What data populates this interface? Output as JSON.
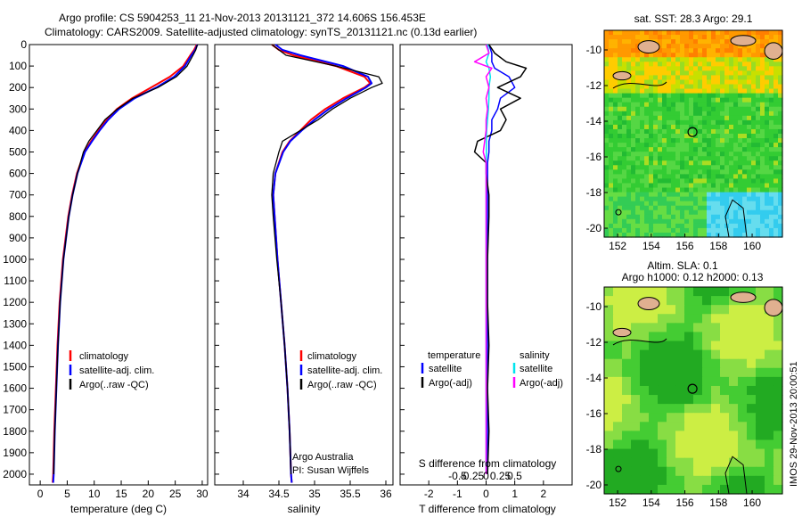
{
  "header": {
    "line1": "Argo profile: CS 5904253_11 21-Nov-2013 20131121_372 14.606S 156.453E",
    "line2": "Climatology: CARS2009. Satellite-adjusted climatology: synTS_20131121.nc (0.13d earlier)"
  },
  "colors": {
    "climatology": "#ff0000",
    "satellite_adj": "#0000ff",
    "argo": "#000000",
    "satellite_salinity": "#00e5ee",
    "argo_salinity_adj": "#ff00ff"
  },
  "depth_axis": {
    "ticks": [
      "0",
      "100",
      "200",
      "300",
      "400",
      "500",
      "600",
      "700",
      "800",
      "900",
      "1000",
      "1100",
      "1200",
      "1300",
      "1400",
      "1500",
      "1600",
      "1700",
      "1800",
      "1900",
      "2000"
    ]
  },
  "legends": {
    "climatology": "climatology",
    "satellite_adj": "satellite-adj. clim.",
    "argo_raw": "Argo(..raw -QC)",
    "temperature": "temperature",
    "salinity": "salinity",
    "satellite": "satellite",
    "argo_adj": "Argo(-adj)"
  },
  "notes": {
    "argo_australia": "Argo Australia",
    "pi": "PI: Susan Wijffels"
  },
  "panel3": {
    "s_diff_label": "S difference from climatology",
    "s_ticks": [
      "-0.5",
      "-0.25",
      "0",
      "0.25",
      "0.5"
    ]
  },
  "maps": {
    "sst_title": "sat. SST: 28.3 Argo: 29.1",
    "sla_title1": "Altim. SLA: 0.1",
    "sla_title2": "Argo h1000: 0.12 h2000: 0.13",
    "lat_ticks": [
      "-10",
      "-12",
      "-14",
      "-16",
      "-18",
      "-20"
    ],
    "lon_ticks": [
      "152",
      "154",
      "156",
      "158",
      "160"
    ],
    "float_lon": 156.453,
    "float_lat": -14.606,
    "credit": "IMOS 29-Nov-2013 20:00:51"
  },
  "chart_data": [
    {
      "type": "line",
      "title": "",
      "xlabel": "temperature (deg C)",
      "ylabel": "",
      "xlim": [
        -2,
        31
      ],
      "ylim": [
        2050,
        0
      ],
      "xticks": [
        "0",
        "5",
        "10",
        "15",
        "20",
        "25",
        "30"
      ],
      "y_depth": [
        0,
        25,
        50,
        100,
        150,
        200,
        250,
        300,
        350,
        400,
        450,
        500,
        600,
        700,
        800,
        900,
        1000,
        1200,
        1400,
        1600,
        1800,
        2000,
        2040
      ],
      "series": [
        {
          "name": "climatology",
          "values": [
            29.0,
            28.5,
            27.8,
            26.5,
            24.0,
            20.5,
            17.0,
            14.2,
            12.3,
            10.8,
            9.4,
            8.2,
            6.8,
            5.9,
            5.2,
            4.7,
            4.2,
            3.6,
            3.2,
            2.9,
            2.6,
            2.4,
            2.3
          ]
        },
        {
          "name": "satellite-adj. clim.",
          "values": [
            29.1,
            28.7,
            28.0,
            26.8,
            24.8,
            21.5,
            17.5,
            14.6,
            12.6,
            11.0,
            9.6,
            8.3,
            6.9,
            6.0,
            5.3,
            4.8,
            4.3,
            3.7,
            3.3,
            3.0,
            2.7,
            2.5,
            2.4
          ]
        },
        {
          "name": "Argo(..raw -QC)",
          "values": [
            29.1,
            28.8,
            28.3,
            27.2,
            25.2,
            21.8,
            17.2,
            14.3,
            12.0,
            10.5,
            9.0,
            8.0,
            6.9,
            6.0,
            5.3,
            4.8,
            4.3,
            3.7,
            3.3,
            3.0,
            2.7,
            2.5
          ]
        }
      ]
    },
    {
      "type": "line",
      "title": "",
      "xlabel": "salinity",
      "ylabel": "",
      "xlim": [
        33.6,
        36.1
      ],
      "ylim": [
        2050,
        0
      ],
      "xticks": [
        "34",
        "34.5",
        "35",
        "35.5",
        "36"
      ],
      "y_depth": [
        0,
        25,
        50,
        100,
        150,
        180,
        200,
        250,
        300,
        350,
        400,
        450,
        500,
        600,
        700,
        800,
        1000,
        1200,
        1400,
        1600,
        1800,
        2000,
        2040
      ],
      "series": [
        {
          "name": "climatology",
          "values": [
            34.4,
            34.5,
            34.7,
            35.3,
            35.7,
            35.78,
            35.7,
            35.4,
            35.15,
            34.95,
            34.8,
            34.65,
            34.55,
            34.45,
            34.42,
            34.44,
            34.48,
            34.53,
            34.58,
            34.62,
            34.65,
            34.67,
            34.68
          ]
        },
        {
          "name": "satellite-adj. clim.",
          "values": [
            34.45,
            34.55,
            34.8,
            35.4,
            35.75,
            35.8,
            35.72,
            35.45,
            35.2,
            35.0,
            34.82,
            34.66,
            34.56,
            34.45,
            34.42,
            34.44,
            34.48,
            34.53,
            34.58,
            34.62,
            34.65,
            34.67,
            34.68
          ]
        },
        {
          "name": "Argo(..raw -QC)",
          "values": [
            34.4,
            34.5,
            34.6,
            35.3,
            35.9,
            35.95,
            35.8,
            35.5,
            35.25,
            35.05,
            34.8,
            34.55,
            34.5,
            34.42,
            34.4,
            34.42,
            34.47,
            34.53,
            34.58,
            34.62,
            34.65,
            34.67
          ]
        }
      ]
    },
    {
      "type": "line",
      "title": "",
      "xlabel": "T difference from climatology",
      "ylabel": "",
      "xlim": [
        -3,
        3
      ],
      "ylim": [
        2050,
        0
      ],
      "xticks": [
        "-2",
        "-1",
        "0",
        "1",
        "2"
      ],
      "y_depth": [
        0,
        40,
        80,
        110,
        150,
        200,
        250,
        300,
        350,
        400,
        450,
        500,
        550,
        600,
        700,
        800,
        1000,
        1200,
        1400,
        1600,
        1800,
        2000
      ],
      "series": [
        {
          "name": "temperature satellite",
          "values": [
            0.1,
            0.2,
            0.2,
            0.3,
            0.8,
            1.0,
            0.5,
            0.4,
            0.2,
            0.2,
            0.1,
            0.1,
            0.05,
            0.05,
            0.05,
            0.05,
            0.05,
            0.05,
            0.05,
            0.05,
            0.05,
            0.05
          ]
        },
        {
          "name": "temperature Argo(-adj)",
          "values": [
            0.1,
            0.3,
            0.7,
            1.4,
            1.2,
            0.4,
            1.2,
            0.5,
            0.7,
            0.5,
            -0.3,
            -0.4,
            0.0,
            0.0,
            0.1,
            0.1,
            0.05,
            0.05,
            0.1,
            0.05,
            0.1,
            0.05
          ]
        },
        {
          "name": "salinity satellite",
          "values": [
            0.05,
            0.1,
            0.0,
            0.1,
            0.15,
            0.1,
            0.1,
            0.08,
            0.05,
            0.02,
            0.01,
            0.01,
            0.0,
            0.0,
            0.0,
            0.0,
            0.0,
            0.0,
            0.0,
            0.0,
            0.0,
            0.0
          ]
        },
        {
          "name": "salinity Argo(-adj)",
          "values": [
            0.0,
            0.1,
            -0.4,
            0.2,
            0.0,
            0.1,
            0.0,
            0.05,
            0.0,
            0.0,
            -0.05,
            -0.1,
            0.0,
            0.0,
            0.0,
            0.0,
            0.0,
            0.0,
            0.0,
            0.0,
            0.0,
            0.0
          ]
        }
      ]
    }
  ]
}
